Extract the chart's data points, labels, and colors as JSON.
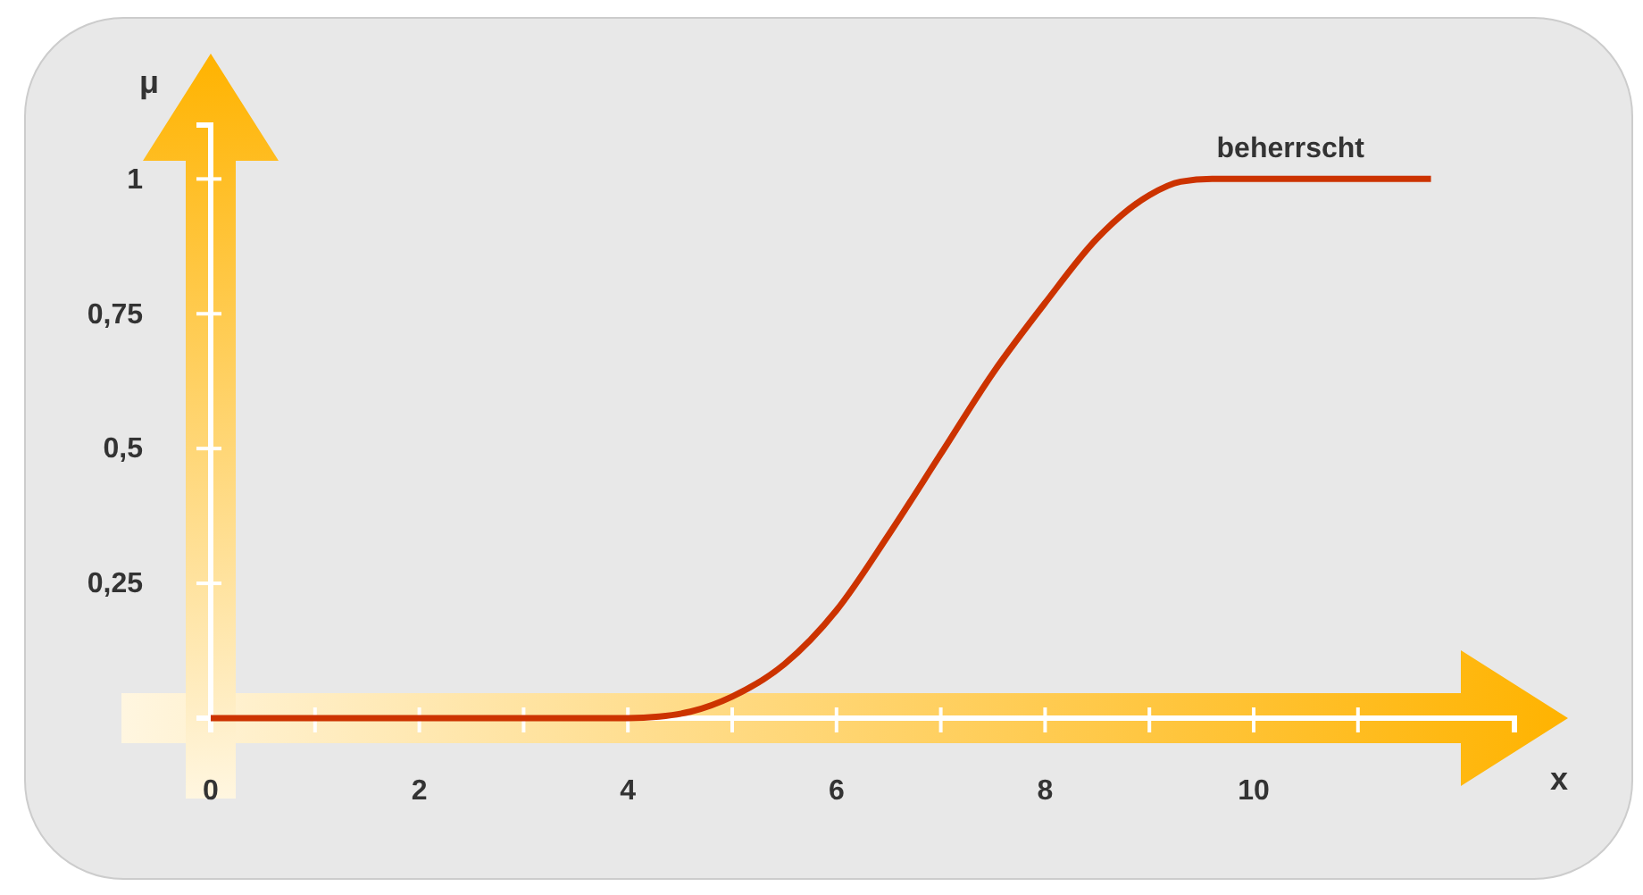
{
  "chart_data": {
    "type": "line",
    "xlabel": "x",
    "ylabel": "μ",
    "x": [
      0,
      1,
      2,
      3,
      4,
      4.3,
      4.6,
      5,
      5.5,
      6,
      6.5,
      7,
      7.5,
      8,
      8.5,
      9,
      9.3,
      9.6,
      10,
      11,
      11.7
    ],
    "series": [
      {
        "name": "beherrscht",
        "color": "#cc3300",
        "values": [
          0,
          0,
          0,
          0,
          0,
          0.003,
          0.012,
          0.04,
          0.1,
          0.2,
          0.34,
          0.49,
          0.64,
          0.77,
          0.89,
          0.97,
          0.995,
          1,
          1,
          1,
          1
        ]
      }
    ],
    "xlim": [
      0,
      12.5
    ],
    "ylim": [
      0,
      1.1
    ],
    "xticks": [
      0,
      {
        "value": 1,
        "label": null
      },
      2,
      {
        "value": 3,
        "label": null
      },
      4,
      {
        "value": 5,
        "label": null
      },
      6,
      {
        "value": 7,
        "label": null
      },
      8,
      {
        "value": 9,
        "label": null
      },
      10,
      {
        "value": 11,
        "label": null
      }
    ],
    "yticks": [
      {
        "value": 0.25,
        "label": "0,25"
      },
      {
        "value": 0.5,
        "label": "0,5"
      },
      {
        "value": 0.75,
        "label": "0,75"
      },
      1
    ],
    "grid": false,
    "legend": false,
    "marker": "none",
    "line_style": "solid"
  }
}
